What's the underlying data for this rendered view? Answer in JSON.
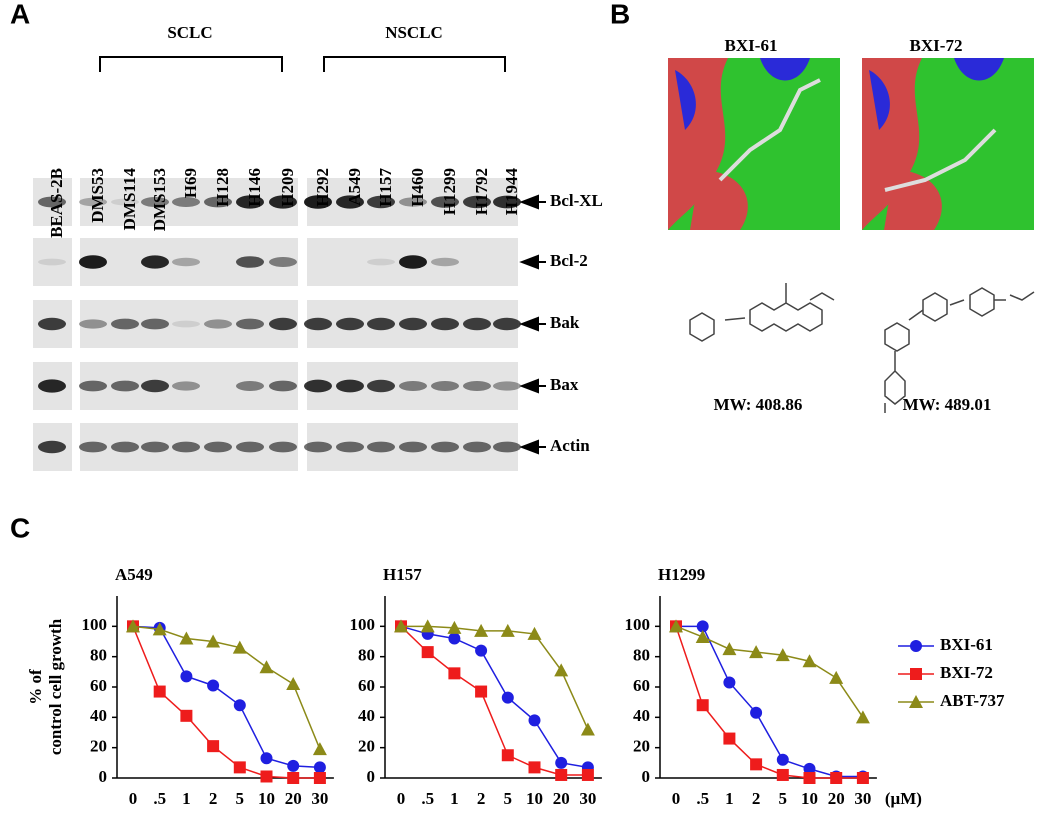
{
  "panel_a": {
    "label": "A",
    "groups": [
      "SCLC",
      "NSCLC"
    ],
    "lanes": [
      "BEAS-2B",
      "DMS53",
      "DMS114",
      "DMS153",
      "H69",
      "H128",
      "H146",
      "H209",
      "H292",
      "A549",
      "H157",
      "H460",
      "H1299",
      "H1792",
      "H1944"
    ],
    "proteins": [
      "Bcl-XL",
      "Bcl-2",
      "Bak",
      "Bax",
      "Actin"
    ]
  },
  "panel_b": {
    "label": "B",
    "compounds": [
      {
        "name": "BXI-61",
        "mw": "MW: 408.86"
      },
      {
        "name": "BXI-72",
        "mw": "MW: 489.01"
      }
    ]
  },
  "panel_c": {
    "label": "C"
  },
  "chart_data": [
    {
      "type": "line",
      "title": "A549",
      "ylabel": [
        "% of",
        "control cell growth"
      ],
      "categories": [
        "0",
        ".5",
        "1",
        "2",
        "5",
        "10",
        "20",
        "30"
      ],
      "ylim": [
        0,
        120
      ],
      "yticks": [
        0,
        20,
        40,
        60,
        80,
        100
      ],
      "series": [
        {
          "name": "BXI-61",
          "color": "#1f1fe0",
          "marker": "circle",
          "values": [
            100,
            99,
            67,
            61,
            48,
            13,
            8,
            7
          ]
        },
        {
          "name": "BXI-72",
          "color": "#ee1c1c",
          "marker": "square",
          "values": [
            100,
            57,
            41,
            21,
            7,
            1,
            0,
            0
          ]
        },
        {
          "name": "ABT-737",
          "color": "#8c8a18",
          "marker": "triangle",
          "values": [
            100,
            98,
            92,
            90,
            86,
            73,
            62,
            19
          ]
        }
      ]
    },
    {
      "type": "line",
      "title": "H157",
      "categories": [
        "0",
        ".5",
        "1",
        "2",
        "5",
        "10",
        "20",
        "30"
      ],
      "ylim": [
        0,
        120
      ],
      "yticks": [
        0,
        20,
        40,
        60,
        80,
        100
      ],
      "series": [
        {
          "name": "BXI-61",
          "color": "#1f1fe0",
          "marker": "circle",
          "values": [
            100,
            95,
            92,
            84,
            53,
            38,
            10,
            7
          ]
        },
        {
          "name": "BXI-72",
          "color": "#ee1c1c",
          "marker": "square",
          "values": [
            100,
            83,
            69,
            57,
            15,
            7,
            2,
            2
          ]
        },
        {
          "name": "ABT-737",
          "color": "#8c8a18",
          "marker": "triangle",
          "values": [
            100,
            100,
            99,
            97,
            97,
            95,
            71,
            32
          ]
        }
      ]
    },
    {
      "type": "line",
      "title": "H1299",
      "xlabel": "(μM)",
      "legend": "right",
      "categories": [
        "0",
        ".5",
        "1",
        "2",
        "5",
        "10",
        "20",
        "30"
      ],
      "ylim": [
        0,
        120
      ],
      "yticks": [
        0,
        20,
        40,
        60,
        80,
        100
      ],
      "series": [
        {
          "name": "BXI-61",
          "color": "#1f1fe0",
          "marker": "circle",
          "values": [
            100,
            100,
            63,
            43,
            12,
            6,
            1,
            1
          ]
        },
        {
          "name": "BXI-72",
          "color": "#ee1c1c",
          "marker": "square",
          "values": [
            100,
            48,
            26,
            9,
            2,
            0,
            0,
            0
          ]
        },
        {
          "name": "ABT-737",
          "color": "#8c8a18",
          "marker": "triangle",
          "values": [
            100,
            93,
            85,
            83,
            81,
            77,
            66,
            40
          ]
        }
      ]
    }
  ]
}
